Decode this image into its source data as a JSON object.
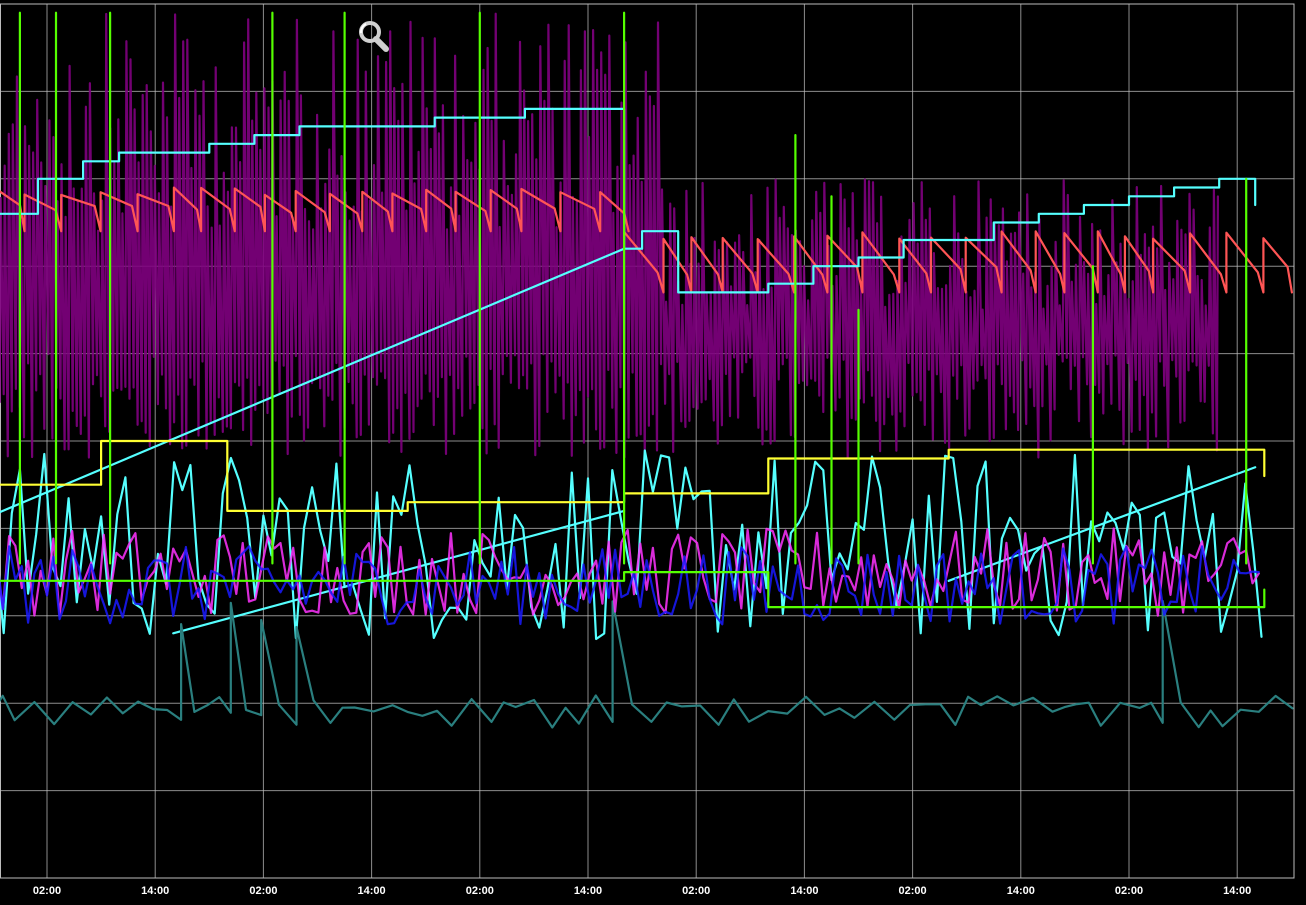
{
  "chart_data": {
    "type": "line",
    "title": "",
    "xlabel": "",
    "ylabel": "",
    "x_ticks": [
      "02:00",
      "14:00",
      "02:00",
      "14:00",
      "02:00",
      "14:00",
      "02:00",
      "14:00",
      "02:00",
      "14:00",
      "02:00",
      "14:00"
    ],
    "x_range_hours": [
      -21,
      135
    ],
    "y_range": [
      0,
      100
    ],
    "grid": true,
    "legend": "none",
    "background": "#000000",
    "series": [
      {
        "color": "#800080",
        "style": "dense-spikes",
        "x": [
          0,
          68
        ],
        "y": [
          48,
          60
        ],
        "spike_top": 99,
        "x_end": 130
      },
      {
        "color": "#ff5555",
        "style": "sawtooth",
        "x": [
          -21,
          64
        ],
        "y": [
          74,
          79
        ],
        "break_at": 64,
        "y2": [
          67,
          74
        ],
        "x2": [
          64,
          135
        ]
      },
      {
        "color": "#55ffff",
        "style": "step",
        "x": [
          -21,
          -17,
          -13,
          -12,
          -7,
          -1,
          4,
          8,
          13,
          18,
          23,
          28,
          33,
          38,
          43,
          48,
          53,
          58,
          63,
          64,
          66,
          70,
          75,
          80,
          85,
          90,
          95,
          100,
          105,
          110,
          115,
          120,
          125,
          130,
          134
        ],
        "y": [
          86,
          86,
          87,
          87,
          76,
          80,
          82,
          83,
          83,
          84,
          85,
          86,
          86,
          86,
          87,
          87,
          88,
          88,
          88,
          72,
          74,
          67,
          67,
          68,
          70,
          71,
          73,
          73,
          75,
          76,
          77,
          78,
          79,
          80,
          77
        ]
      },
      {
        "color": "#55ffff",
        "style": "zigzag",
        "x": [
          -21,
          135
        ],
        "y": [
          27,
          49
        ]
      },
      {
        "color": "#2a7f7f",
        "style": "sawtooth-low",
        "x": [
          -21,
          135
        ],
        "y": [
          17,
          26
        ]
      },
      {
        "color": "#ff33ff",
        "style": "noise",
        "x": [
          -21,
          135
        ],
        "y": [
          30,
          40
        ]
      },
      {
        "color": "#1a1aff",
        "style": "noise",
        "x": [
          -21,
          135
        ],
        "y": [
          29,
          38
        ]
      },
      {
        "color": "#ffff33",
        "style": "step",
        "x": [
          -21,
          6,
          6,
          20,
          40,
          64,
          80,
          100,
          120,
          135
        ],
        "y": [
          45,
          45,
          50,
          42,
          43,
          44,
          48,
          49,
          49,
          46
        ]
      },
      {
        "color": "#55ff00",
        "style": "spikes",
        "x": [
          -7,
          -3,
          1,
          7,
          25,
          33,
          48,
          64,
          83,
          87,
          90,
          116,
          133
        ],
        "y": [
          99,
          99,
          99,
          99,
          99,
          99,
          99,
          99,
          85,
          78,
          65,
          70,
          80
        ]
      },
      {
        "color": "#55ff00",
        "style": "step",
        "x": [
          -21,
          64,
          80,
          135
        ],
        "y": [
          34,
          35,
          31,
          33
        ]
      }
    ]
  },
  "toolbar": {
    "zoom_icon": "magnifier-icon"
  }
}
